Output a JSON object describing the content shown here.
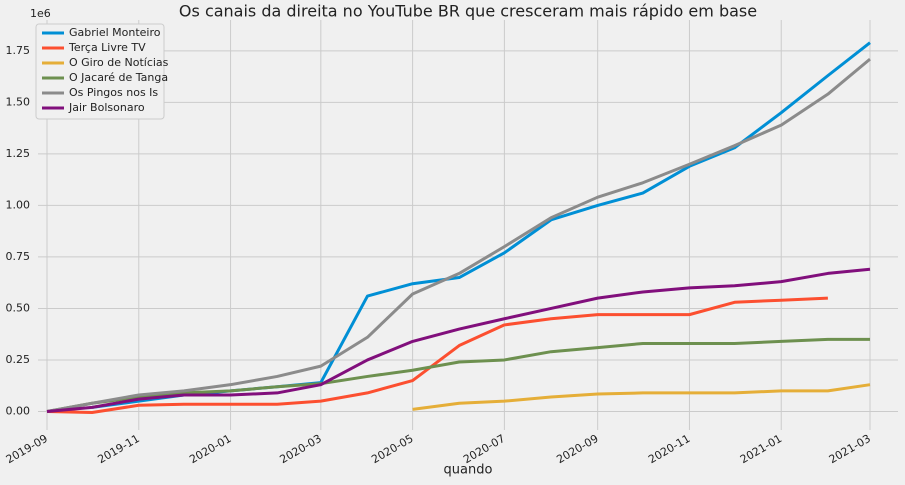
{
  "chart_data": {
    "type": "line",
    "title": "Os canais da direita no YouTube BR que cresceram mais rápido em base",
    "xlabel": "quando",
    "y_offset_label": "1e6",
    "x": [
      "2019-09",
      "2019-10",
      "2019-11",
      "2019-12",
      "2020-01",
      "2020-02",
      "2020-03",
      "2020-04",
      "2020-05",
      "2020-06",
      "2020-07",
      "2020-08",
      "2020-09",
      "2020-10",
      "2020-11",
      "2020-12",
      "2021-01",
      "2021-02",
      "2021-03"
    ],
    "series": [
      {
        "name": "Gabriel Monteiro",
        "color": "#008fd5",
        "values": [
          null,
          0.02,
          0.05,
          0.08,
          0.1,
          0.12,
          0.14,
          0.56,
          0.62,
          0.65,
          0.77,
          0.93,
          1.0,
          1.06,
          1.19,
          1.28,
          1.45,
          1.63,
          1.79
        ]
      },
      {
        "name": "Terça Livre TV",
        "color": "#fc4f30",
        "values": [
          0.0,
          -0.005,
          0.03,
          0.035,
          0.035,
          0.035,
          0.05,
          0.09,
          0.15,
          0.32,
          0.42,
          0.45,
          0.47,
          0.47,
          0.47,
          0.53,
          0.54,
          0.55,
          null
        ]
      },
      {
        "name": "O Giro de Notícias",
        "color": "#e5ae38",
        "values": [
          null,
          null,
          null,
          null,
          null,
          null,
          null,
          null,
          0.01,
          0.04,
          0.05,
          0.07,
          0.085,
          0.09,
          0.09,
          0.09,
          0.1,
          0.1,
          0.13
        ]
      },
      {
        "name": "O Jacaré de Tanga",
        "color": "#6d904f",
        "values": [
          0.0,
          0.04,
          0.07,
          0.09,
          0.1,
          0.12,
          0.135,
          0.17,
          0.2,
          0.24,
          0.25,
          0.29,
          0.31,
          0.33,
          0.33,
          0.33,
          0.34,
          0.35,
          0.35
        ]
      },
      {
        "name": "Os Pingos nos Is",
        "color": "#8b8b8b",
        "values": [
          0.0,
          0.04,
          0.08,
          0.1,
          0.13,
          0.17,
          0.22,
          0.36,
          0.57,
          0.67,
          0.8,
          0.94,
          1.04,
          1.11,
          1.2,
          1.29,
          1.39,
          1.54,
          1.71
        ]
      },
      {
        "name": "Jair Bolsonaro",
        "color": "#810f7c",
        "values": [
          0.0,
          0.02,
          0.06,
          0.08,
          0.08,
          0.09,
          0.13,
          0.25,
          0.34,
          0.4,
          0.45,
          0.5,
          0.55,
          0.58,
          0.6,
          0.61,
          0.63,
          0.67,
          0.69
        ]
      }
    ],
    "xlim": [
      "2019-09",
      "2021-03"
    ],
    "xticks": [
      "2019-09",
      "2019-11",
      "2020-01",
      "2020-03",
      "2020-05",
      "2020-07",
      "2020-09",
      "2020-11",
      "2021-01",
      "2021-03"
    ],
    "ylim": [
      -0.09,
      1.9
    ],
    "yticks": [
      {
        "value": 0,
        "label": "0.00"
      },
      {
        "value": 0.25,
        "label": "0.25"
      },
      {
        "value": 0.5,
        "label": "0.50"
      },
      {
        "value": 0.75,
        "label": "0.75"
      },
      {
        "value": 1,
        "label": "1.00"
      },
      {
        "value": 1.25,
        "label": "1.25"
      },
      {
        "value": 1.5,
        "label": "1.50"
      },
      {
        "value": 1.75,
        "label": "1.75"
      }
    ],
    "grid": true,
    "legend": "upper left"
  }
}
